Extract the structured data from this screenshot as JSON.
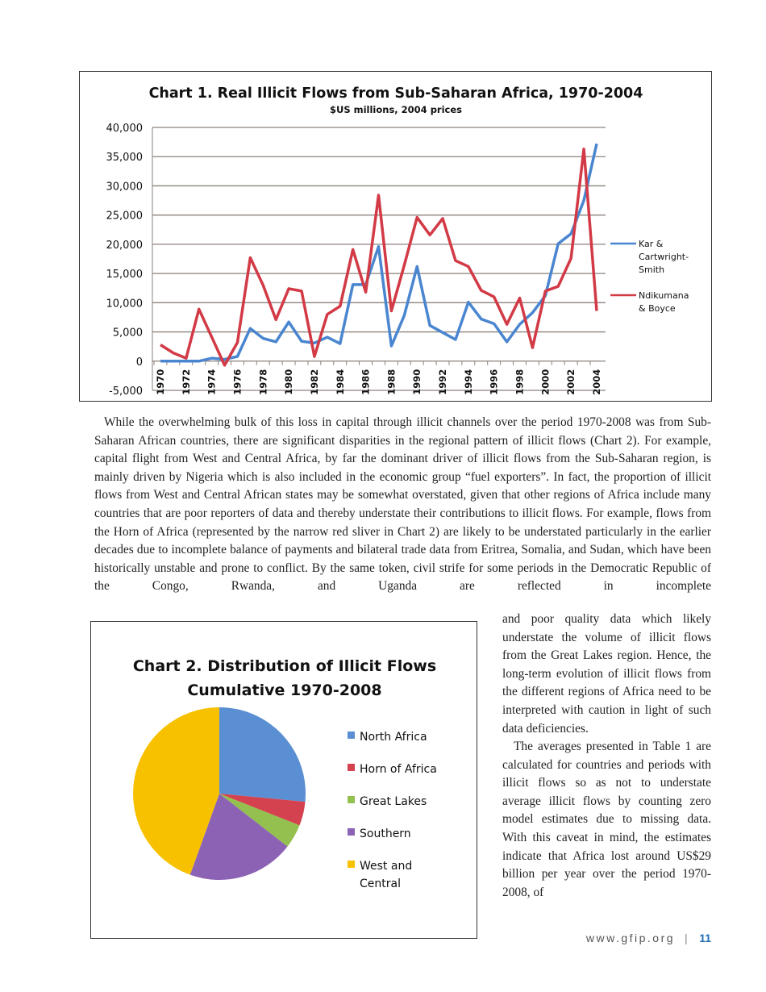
{
  "chart_data": [
    {
      "type": "line",
      "title": "Chart 1. Real Illicit Flows from Sub-Saharan Africa, 1970-2004",
      "subtitle": "$US millions, 2004 prices",
      "xlabel": "",
      "ylabel": "",
      "ylim": [
        -5000,
        40000
      ],
      "yticks": [
        "40,000",
        "35,000",
        "30,000",
        "25,000",
        "20,000",
        "15,000",
        "10,000",
        "5,000",
        "0",
        "-5,000"
      ],
      "ytick_values": [
        40000,
        35000,
        30000,
        25000,
        20000,
        15000,
        10000,
        5000,
        0,
        -5000
      ],
      "x": [
        1970,
        1971,
        1972,
        1973,
        1974,
        1975,
        1976,
        1977,
        1978,
        1979,
        1980,
        1981,
        1982,
        1983,
        1984,
        1985,
        1986,
        1987,
        1988,
        1989,
        1990,
        1991,
        1992,
        1993,
        1994,
        1995,
        1996,
        1997,
        1998,
        1999,
        2000,
        2001,
        2002,
        2003,
        2004
      ],
      "xtick_labels": [
        "1970",
        "1972",
        "1974",
        "1976",
        "1978",
        "1980",
        "1982",
        "1984",
        "1986",
        "1988",
        "1990",
        "1992",
        "1994",
        "1996",
        "1998",
        "2000",
        "2002",
        "2004"
      ],
      "grid": true,
      "legend": "right",
      "series": [
        {
          "name": "Kar & Cartwright-Smith",
          "color": "#4a86d0",
          "values": [
            0,
            0,
            0,
            0,
            500,
            300,
            800,
            5600,
            3900,
            3300,
            6700,
            3400,
            3100,
            4100,
            3000,
            13100,
            13100,
            19600,
            2600,
            7800,
            16200,
            6100,
            4900,
            3700,
            10100,
            7200,
            6400,
            3300,
            6300,
            8300,
            11200,
            20100,
            21800,
            27500,
            37200
          ]
        },
        {
          "name": "Ndikumana & Boyce",
          "color": "#d23a46",
          "values": [
            2800,
            1400,
            500,
            8900,
            4100,
            -700,
            3200,
            17700,
            13000,
            7100,
            12400,
            12000,
            800,
            8000,
            9400,
            19100,
            11800,
            28400,
            8600,
            16400,
            24600,
            21600,
            24400,
            17200,
            16200,
            12100,
            11000,
            6300,
            10800,
            2300,
            12000,
            12800,
            17600,
            36300,
            8600
          ]
        }
      ]
    },
    {
      "type": "pie",
      "title": "Chart 2. Distribution of Illicit Flows",
      "subtitle": "Cumulative 1970-2008",
      "legend": "right",
      "categories": [
        "North Africa",
        "Horn of Africa",
        "Great Lakes",
        "Southern",
        "West and Central"
      ],
      "values": [
        26.5,
        4.5,
        4.5,
        20,
        44.5
      ],
      "colors": [
        "#5b8fd3",
        "#d4424f",
        "#93c04e",
        "#8c62b5",
        "#f7c100"
      ]
    }
  ],
  "text": {
    "p1": "While the overwhelming bulk of this loss in capital through illicit channels over the period 1970-2008 was from Sub-Saharan African countries, there are significant disparities in the regional pattern of illicit flows (Chart 2). For example, capital flight from West and Central Africa, by far the dominant driver of illicit flows from the Sub-Saharan region, is mainly driven by Nigeria which is also included in the economic group “fuel exporters”. In fact, the proportion of illicit flows from West and Central African states may be somewhat overstated, given that other regions of Africa include many countries that are poor reporters of data and thereby understate their contributions to illicit flows. For example, flows from the Horn of Africa (represented by the narrow red sliver in Chart 2) are likely to be understated particularly in the earlier decades due to incomplete balance of payments and bilateral trade data from Eritrea, Somalia, and Sudan, which have been historically unstable and prone to conflict. By the same token, civil strife for some periods in the Democratic Republic of the Congo, Rwanda, and Uganda are reflected in incomplete",
    "p1_cont": "and poor quality data which likely understate the volume of illicit flows from the Great Lakes region. Hence, the long-term evolution of illicit flows from the different regions of Africa need to be interpreted with caution in light of such data deficiencies.",
    "p2": "The averages presented in Table 1 are calculated for countries and periods with illicit flows so as not to understate average illicit flows by counting zero model estimates due to missing data. With this caveat in mind, the estimates indicate that Africa lost around US$29 billion per year over the period 1970-2008, of"
  },
  "footer": {
    "url": "www.gfip.org",
    "separator": "|",
    "page": "11"
  }
}
